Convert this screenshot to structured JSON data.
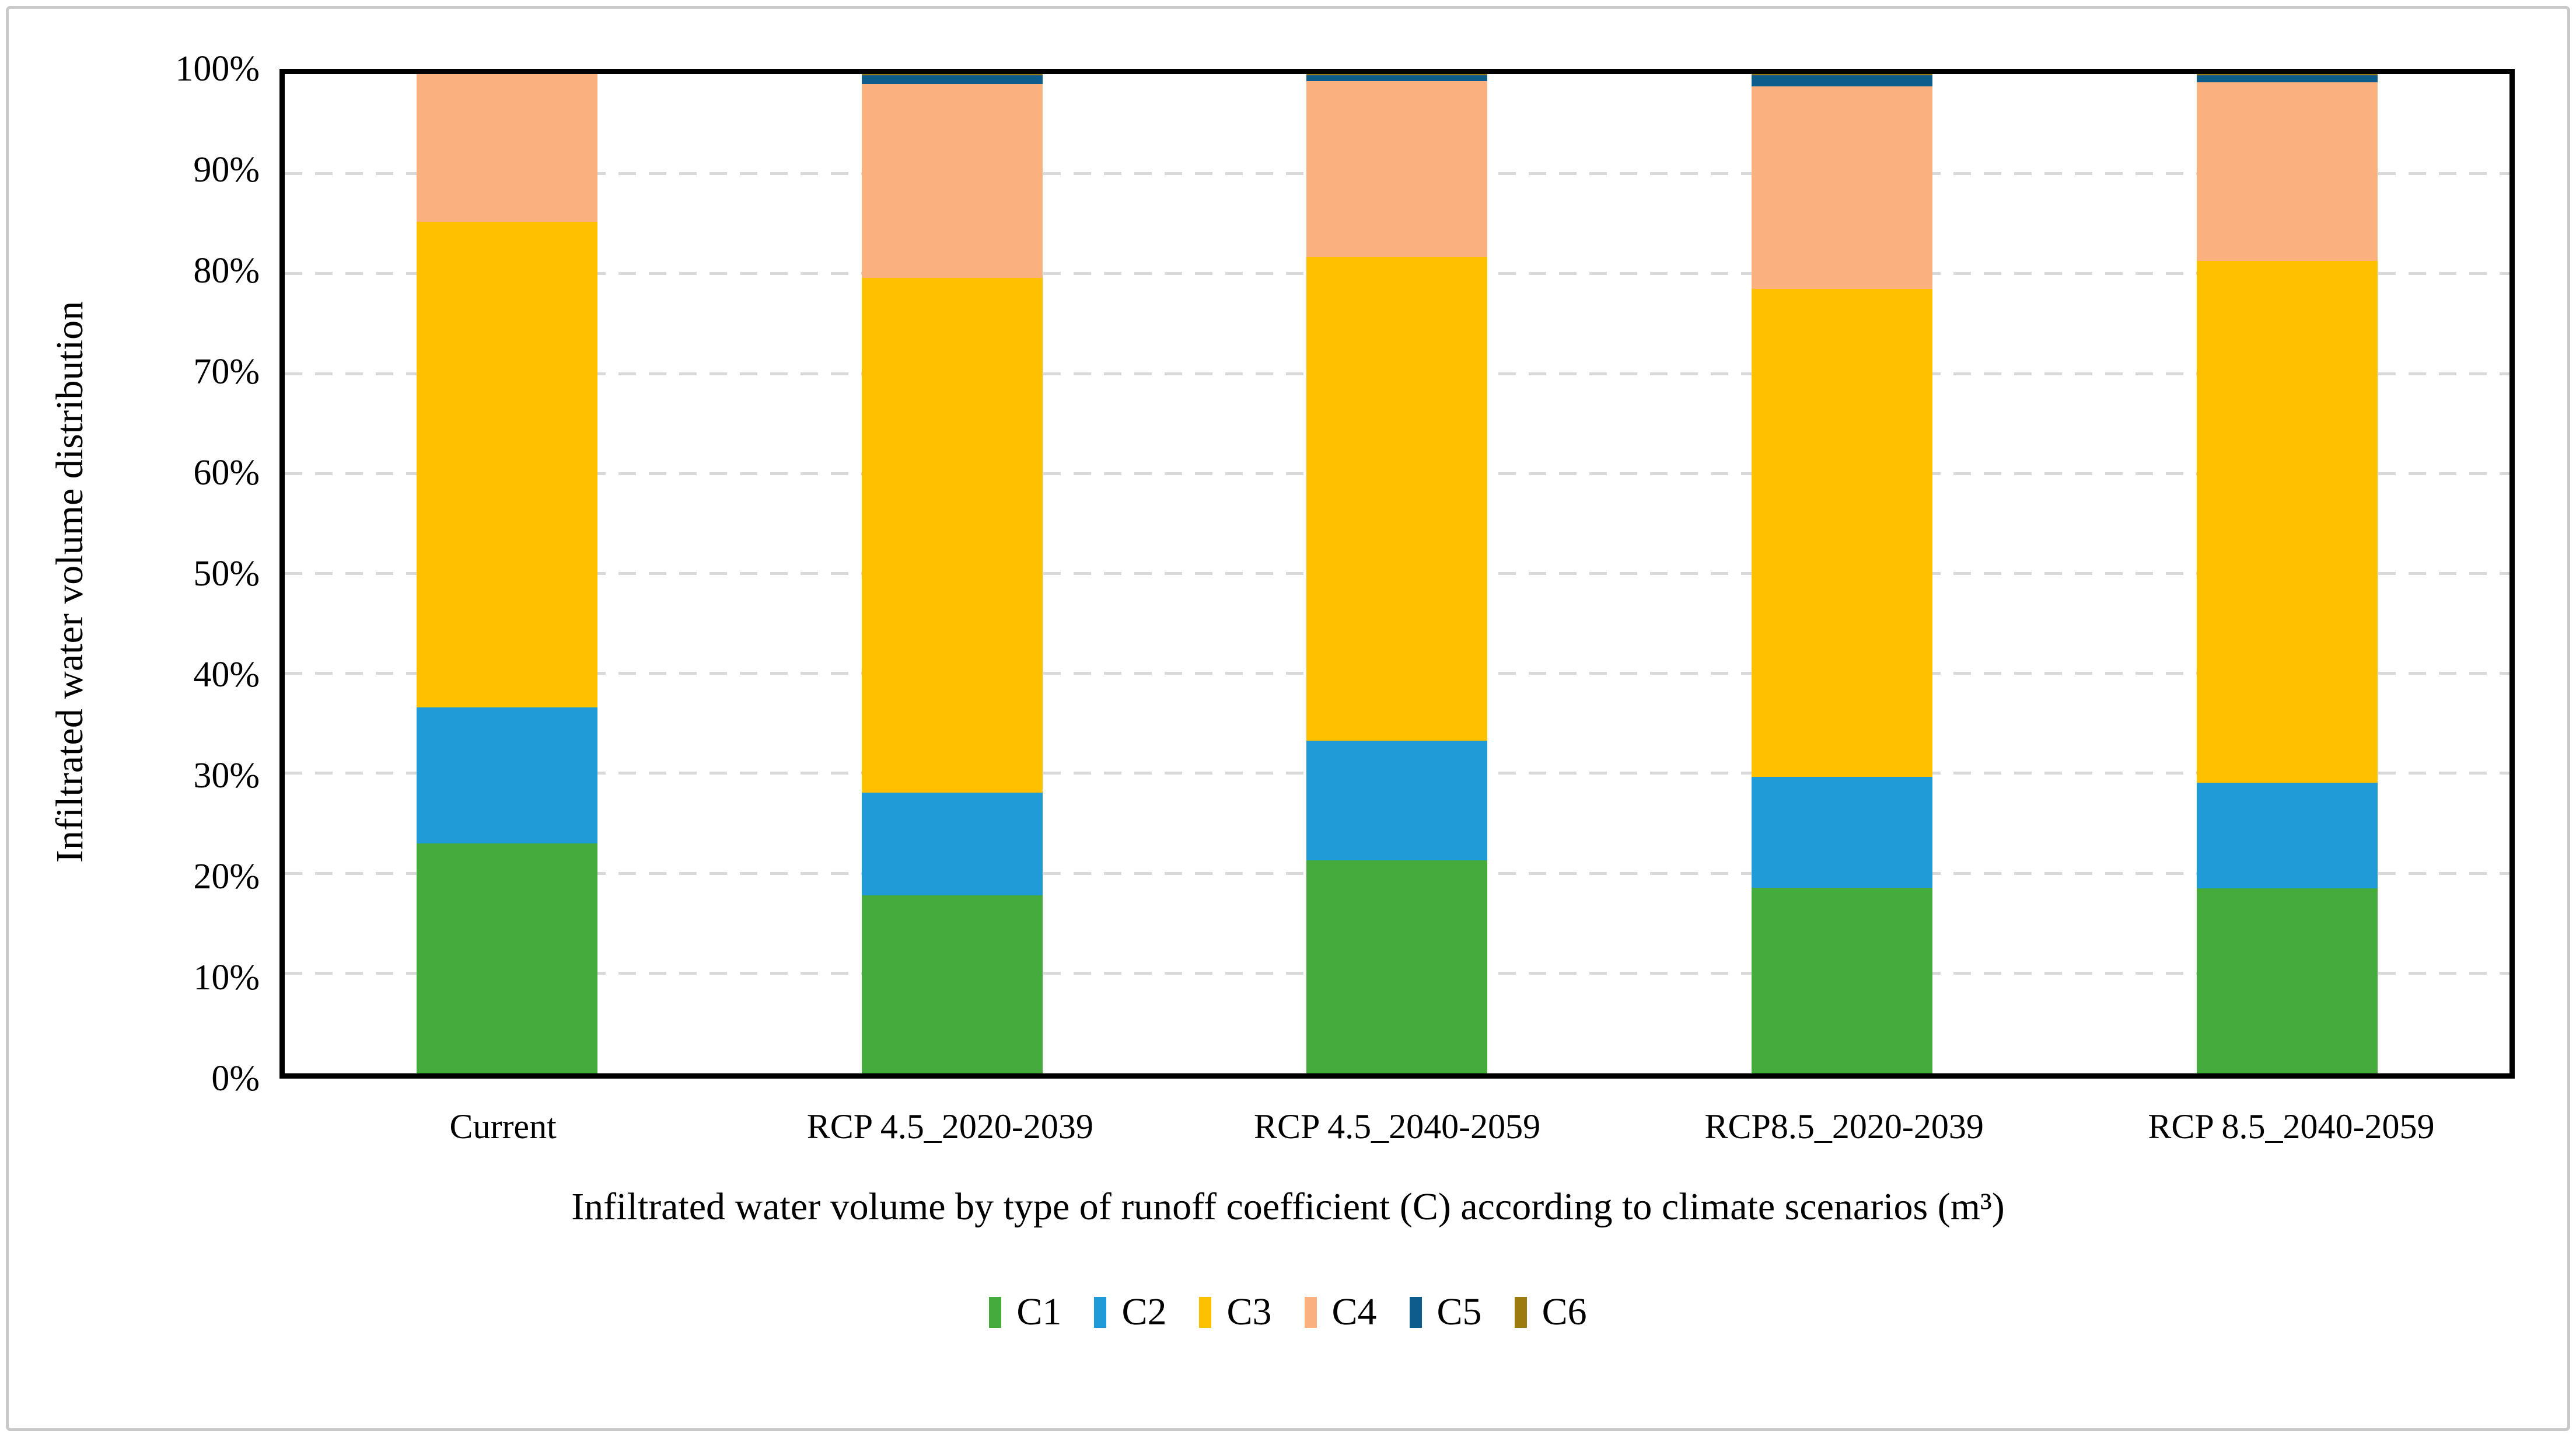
{
  "figure": {
    "y_axis_title": "Infiltrated water volume distribution",
    "x_axis_title": "Infiltrated water volume by type of runoff coefficient (C) according to climate scenarios (m³)"
  },
  "chart_data": {
    "type": "bar",
    "subtype": "stacked-100-percent-column",
    "title": "",
    "xlabel": "Infiltrated water volume by type of runoff coefficient (C) according to climate scenarios (m³)",
    "ylabel": "Infiltrated water volume distribution",
    "categories": [
      "Current",
      "RCP 4.5_2020-2039",
      "RCP 4.5_2040-2059",
      "RCP8.5_2020-2039",
      "RCP 8.5_2040-2059"
    ],
    "series": [
      {
        "name": "C1",
        "color": "#44ab3c",
        "values": [
          23.0,
          17.8,
          21.3,
          18.6,
          18.5
        ]
      },
      {
        "name": "C2",
        "color": "#209bd8",
        "values": [
          13.6,
          10.3,
          12.0,
          11.1,
          10.6
        ]
      },
      {
        "name": "C3",
        "color": "#ffc000",
        "values": [
          48.6,
          51.5,
          48.4,
          48.8,
          52.2
        ]
      },
      {
        "name": "C4",
        "color": "#fbb17f",
        "values": [
          14.8,
          19.4,
          17.6,
          20.3,
          17.9
        ]
      },
      {
        "name": "C5",
        "color": "#0d5c8c",
        "values": [
          0.0,
          0.9,
          0.6,
          1.1,
          0.7
        ]
      },
      {
        "name": "C6",
        "color": "#9c7b10",
        "values": [
          0.0,
          0.1,
          0.1,
          0.1,
          0.1
        ]
      }
    ],
    "y_ticks": [
      "0%",
      "10%",
      "20%",
      "30%",
      "40%",
      "50%",
      "60%",
      "70%",
      "80%",
      "90%",
      "100%"
    ],
    "ylim": [
      0,
      100
    ],
    "grid": "horizontal dashed every 10%",
    "gridline_color": "#d9d9d9",
    "legend_position": "bottom",
    "legend_labels": [
      "C1",
      "C2",
      "C3",
      "C4",
      "C5",
      "C6"
    ]
  },
  "colors": {
    "plot_border": "#000000",
    "outer_border": "#c9c9c9",
    "background": "#ffffff"
  }
}
